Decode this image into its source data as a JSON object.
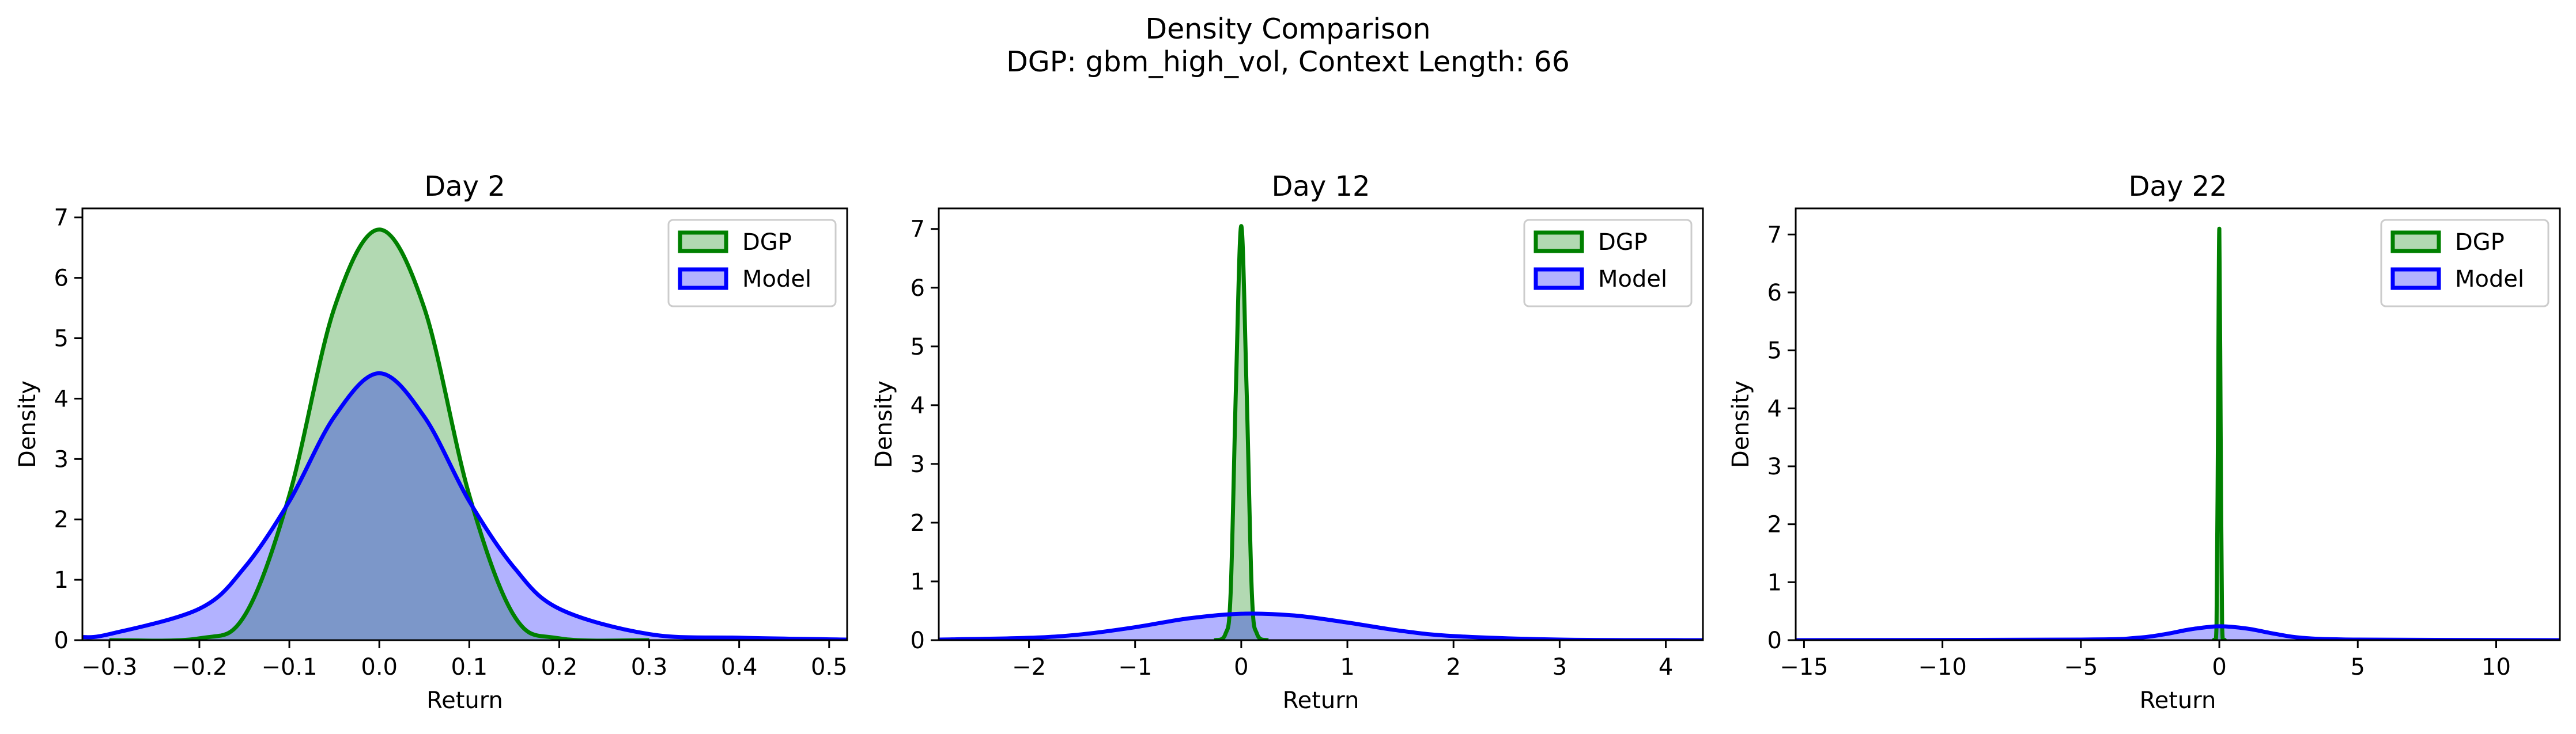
{
  "figure": {
    "title_line1": "Density Comparison",
    "title_line2": "DGP: gbm_high_vol, Context Length: 66"
  },
  "colors": {
    "dgp": "#008000",
    "model": "#0000ff"
  },
  "chart_data": [
    {
      "type": "area",
      "title": "Day 2",
      "xlabel": "Return",
      "ylabel": "Density",
      "xlim": [
        -0.33,
        0.52
      ],
      "ylim": [
        0,
        7.15
      ],
      "xticks": [
        -0.3,
        -0.2,
        -0.1,
        0.0,
        0.1,
        0.2,
        0.3,
        0.4,
        0.5
      ],
      "xticklabels": [
        "−0.3",
        "−0.2",
        "−0.1",
        "0.0",
        "0.1",
        "0.2",
        "0.3",
        "0.4",
        "0.5"
      ],
      "yticks": [
        0,
        1,
        2,
        3,
        4,
        5,
        6,
        7
      ],
      "yticklabels": [
        "0",
        "1",
        "2",
        "3",
        "4",
        "5",
        "6",
        "7"
      ],
      "legend": "upper right",
      "grid": false,
      "series": [
        {
          "name": "DGP",
          "x": [
            -0.3,
            -0.2,
            -0.15,
            -0.1,
            -0.05,
            0.0,
            0.05,
            0.1,
            0.15,
            0.2,
            0.3
          ],
          "y": [
            0,
            0.03,
            0.4,
            2.4,
            5.5,
            6.8,
            5.5,
            2.4,
            0.4,
            0.03,
            0
          ]
        },
        {
          "name": "Model",
          "x": [
            -0.33,
            -0.3,
            -0.2,
            -0.15,
            -0.1,
            -0.05,
            0.0,
            0.05,
            0.1,
            0.15,
            0.2,
            0.3,
            0.4,
            0.52
          ],
          "y": [
            0.05,
            0.1,
            0.52,
            1.2,
            2.3,
            3.7,
            4.42,
            3.7,
            2.3,
            1.2,
            0.52,
            0.1,
            0.04,
            0.01
          ]
        }
      ]
    },
    {
      "type": "area",
      "title": "Day 12",
      "xlabel": "Return",
      "ylabel": "Density",
      "xlim": [
        -2.85,
        4.35
      ],
      "ylim": [
        0,
        7.35
      ],
      "xticks": [
        -2,
        -1,
        0,
        1,
        2,
        3,
        4
      ],
      "xticklabels": [
        "−2",
        "−1",
        "0",
        "1",
        "2",
        "3",
        "4"
      ],
      "yticks": [
        0,
        1,
        2,
        3,
        4,
        5,
        6,
        7
      ],
      "yticklabels": [
        "0",
        "1",
        "2",
        "3",
        "4",
        "5",
        "6",
        "7"
      ],
      "legend": "upper right",
      "grid": false,
      "series": [
        {
          "name": "DGP",
          "x": [
            -0.25,
            -0.15,
            -0.1,
            -0.05,
            0.0,
            0.05,
            0.1,
            0.15,
            0.25
          ],
          "y": [
            0,
            0.1,
            0.8,
            4.3,
            7.05,
            4.3,
            0.8,
            0.1,
            0
          ]
        },
        {
          "name": "Model",
          "x": [
            -2.85,
            -2.0,
            -1.5,
            -1.0,
            -0.5,
            0.0,
            0.5,
            1.0,
            1.5,
            2.0,
            3.0,
            4.35
          ],
          "y": [
            0.01,
            0.04,
            0.1,
            0.22,
            0.37,
            0.45,
            0.42,
            0.3,
            0.16,
            0.07,
            0.01,
            0.0
          ]
        }
      ]
    },
    {
      "type": "area",
      "title": "Day 22",
      "xlabel": "Return",
      "ylabel": "Density",
      "xlim": [
        -15.3,
        12.3
      ],
      "ylim": [
        0,
        7.45
      ],
      "xticks": [
        -15,
        -10,
        -5,
        0,
        5,
        10
      ],
      "xticklabels": [
        "−15",
        "−10",
        "−5",
        "0",
        "5",
        "10"
      ],
      "yticks": [
        0,
        1,
        2,
        3,
        4,
        5,
        6,
        7
      ],
      "yticklabels": [
        "0",
        "1",
        "2",
        "3",
        "4",
        "5",
        "6",
        "7"
      ],
      "legend": "upper right",
      "grid": false,
      "series": [
        {
          "name": "DGP",
          "x": [
            -0.2,
            -0.1,
            -0.05,
            0.0,
            0.05,
            0.1,
            0.2
          ],
          "y": [
            0,
            0.3,
            3.5,
            7.1,
            3.5,
            0.3,
            0
          ]
        },
        {
          "name": "Model",
          "x": [
            -15.3,
            -5.0,
            -3.0,
            -2.0,
            -1.0,
            0.0,
            1.0,
            2.0,
            3.0,
            5.0,
            12.3
          ],
          "y": [
            0,
            0.01,
            0.04,
            0.1,
            0.19,
            0.24,
            0.2,
            0.11,
            0.04,
            0.01,
            0
          ]
        }
      ]
    }
  ]
}
